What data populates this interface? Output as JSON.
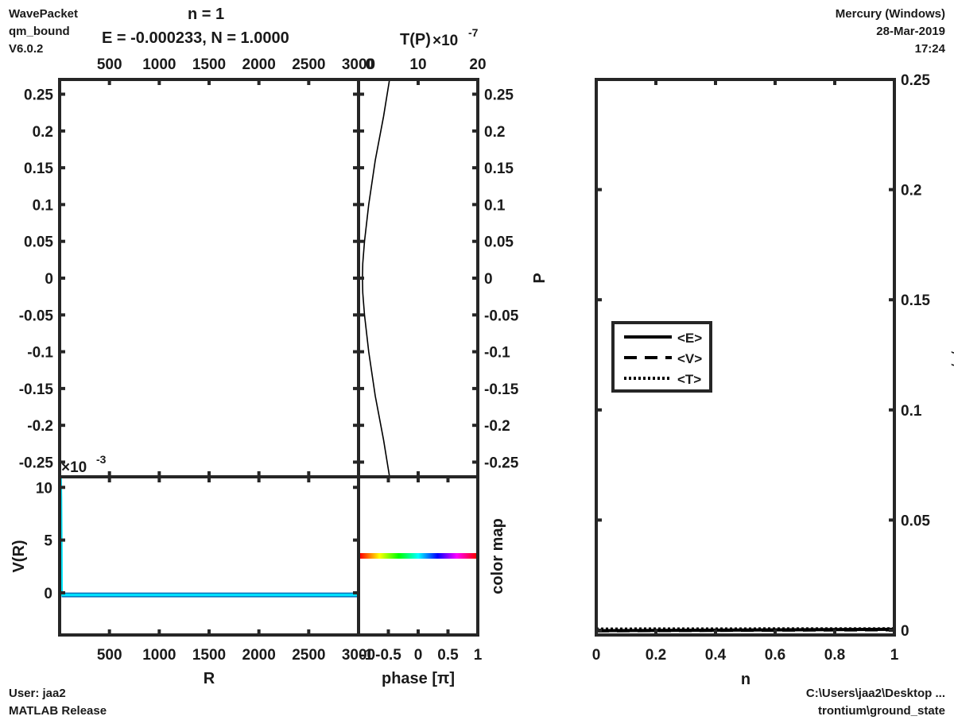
{
  "header_left": {
    "line1": "WavePacket",
    "line2": "qm_bound",
    "line3": "V6.0.2"
  },
  "header_right": {
    "line1": "Mercury (Windows)",
    "line2": "28-Mar-2019",
    "line3": "17:24"
  },
  "footer_left": {
    "line1": "User: jaa2",
    "line2": "MATLAB Release"
  },
  "footer_right": {
    "line1": "C:\\Users\\jaa2\\Desktop ...",
    "line2": "trontium\\ground_state"
  },
  "panel_title": {
    "step": "n = 1",
    "energy": "E = -0.000233, N = 1.0000"
  },
  "colors": {
    "axis": "#262626",
    "wave": "#0072bd",
    "potential": "#00e5ff",
    "curve": "#000000"
  },
  "chart_data": [
    {
      "id": "phase-space",
      "type": "line",
      "xlabel": "R",
      "ylabel": "P",
      "xlim": [
        0,
        3000
      ],
      "ylim": [
        -0.27,
        0.27
      ],
      "xticks": [
        500,
        1000,
        1500,
        2000,
        2500,
        3000
      ],
      "xtick_labels": [
        "500",
        "1000",
        "1500",
        "2000",
        "2500",
        "3000"
      ],
      "yticks": [
        0.25,
        0.2,
        0.15,
        0.1,
        0.05,
        0,
        -0.05,
        -0.1,
        -0.15,
        -0.2,
        -0.25
      ],
      "ytick_labels": [
        "0.25",
        "0.2",
        "0.15",
        "0.1",
        "0.05",
        "0",
        "-0.05",
        "-0.1",
        "-0.15",
        "-0.2",
        "-0.25"
      ],
      "series": [
        {
          "x": [
            3,
            3
          ],
          "y": [
            -0.27,
            0.27
          ]
        }
      ]
    },
    {
      "id": "momentum-density",
      "type": "line",
      "xlabel": "T(P)",
      "x_multiplier": "×10",
      "x_exponent": "-7",
      "xlim": [
        0,
        20
      ],
      "ylim": [
        -0.27,
        0.27
      ],
      "xticks": [
        0,
        10,
        20
      ],
      "xtick_labels": [
        "0",
        "10",
        "20"
      ],
      "series": [
        {
          "x": [
            5.2,
            4.2,
            2.8,
            1.7,
            1.0,
            0.7,
            0.65,
            0.7,
            1.0,
            1.7,
            2.8,
            4.2,
            5.2
          ],
          "y": [
            0.27,
            0.22,
            0.16,
            0.1,
            0.05,
            0.02,
            0,
            -0.02,
            -0.05,
            -0.1,
            -0.16,
            -0.22,
            -0.27
          ]
        }
      ]
    },
    {
      "id": "potential",
      "type": "line",
      "xlabel": "R",
      "ylabel": "V(R)",
      "y_multiplier": "×10",
      "y_exponent": "-3",
      "xlim": [
        0,
        3000
      ],
      "ylim": [
        -4,
        11
      ],
      "xticks": [
        500,
        1000,
        1500,
        2000,
        2500,
        3000
      ],
      "xtick_labels": [
        "500",
        "1000",
        "1500",
        "2000",
        "2500",
        "3000"
      ],
      "yticks": [
        10,
        5,
        0
      ],
      "ytick_labels": [
        "10",
        "5",
        "0"
      ],
      "series": [
        {
          "name": "potential",
          "x": [
            10,
            14,
            18,
            20,
            22,
            40,
            3000
          ],
          "y": [
            11,
            9,
            4,
            0.5,
            -0.2,
            -0.2,
            -0.2
          ]
        }
      ]
    },
    {
      "id": "colormap",
      "type": "line",
      "xlabel": "phase [π]",
      "ylabel": "color map",
      "xlim": [
        -1,
        1
      ],
      "xticks": [
        -1,
        -0.5,
        0,
        0.5,
        1
      ],
      "xtick_labels": [
        "-1",
        "-0.5",
        "0",
        "0.5",
        "1"
      ]
    },
    {
      "id": "expectation-values",
      "type": "line",
      "xlabel": "n",
      "ylabel": "<V,T,E>",
      "xlim": [
        0,
        1
      ],
      "ylim": [
        0,
        0.25
      ],
      "xticks": [
        0,
        0.2,
        0.4,
        0.6,
        0.8,
        1
      ],
      "xtick_labels": [
        "0",
        "0.2",
        "0.4",
        "0.6",
        "0.8",
        "1"
      ],
      "yticks": [
        0,
        0.05,
        0.1,
        0.15,
        0.2,
        0.25
      ],
      "ytick_labels": [
        "0",
        "0.05",
        "0.1",
        "0.15",
        "0.2",
        "0.25"
      ],
      "legend": "upper-left",
      "series": [
        {
          "name": "<E>",
          "style": "solid",
          "x": [
            0,
            1
          ],
          "y": [
            -0.0002,
            0.0004
          ]
        },
        {
          "name": "<V>",
          "style": "dashed",
          "x": [
            0,
            1
          ],
          "y": [
            -0.0003,
            0.0002
          ]
        },
        {
          "name": "<T>",
          "style": "dotted",
          "x": [
            0,
            1
          ],
          "y": [
            0.0005,
            0.0006
          ]
        }
      ]
    }
  ]
}
